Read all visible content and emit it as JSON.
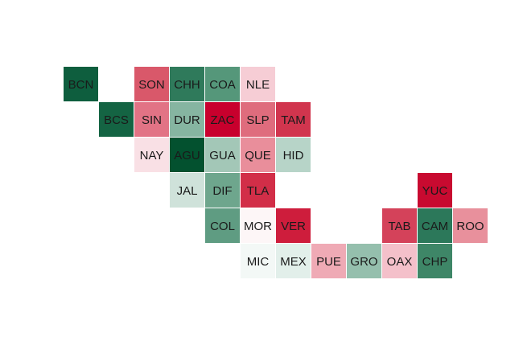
{
  "map": {
    "tiles": [
      {
        "code": "BCN",
        "row": 0,
        "col": 0,
        "color": "#0e5e3e"
      },
      {
        "code": "SON",
        "row": 0,
        "col": 2,
        "color": "#d9586a"
      },
      {
        "code": "CHH",
        "row": 0,
        "col": 3,
        "color": "#2f7a5b"
      },
      {
        "code": "COA",
        "row": 0,
        "col": 4,
        "color": "#55977a"
      },
      {
        "code": "NLE",
        "row": 0,
        "col": 5,
        "color": "#f6cdd5"
      },
      {
        "code": "BCS",
        "row": 1,
        "col": 1,
        "color": "#146443"
      },
      {
        "code": "SIN",
        "row": 1,
        "col": 2,
        "color": "#e27385"
      },
      {
        "code": "DUR",
        "row": 1,
        "col": 3,
        "color": "#86b5a1"
      },
      {
        "code": "ZAC",
        "row": 1,
        "col": 4,
        "color": "#c8002d"
      },
      {
        "code": "SLP",
        "row": 1,
        "col": 5,
        "color": "#df6c7d"
      },
      {
        "code": "TAM",
        "row": 1,
        "col": 6,
        "color": "#d1354e"
      },
      {
        "code": "NAY",
        "row": 2,
        "col": 2,
        "color": "#f9e0e5"
      },
      {
        "code": "AGU",
        "row": 2,
        "col": 3,
        "color": "#03512f"
      },
      {
        "code": "GUA",
        "row": 2,
        "col": 4,
        "color": "#a3c7b7"
      },
      {
        "code": "QUE",
        "row": 2,
        "col": 5,
        "color": "#e98e9b"
      },
      {
        "code": "HID",
        "row": 2,
        "col": 6,
        "color": "#b7d4c8"
      },
      {
        "code": "JAL",
        "row": 3,
        "col": 3,
        "color": "#cfe2da"
      },
      {
        "code": "DIF",
        "row": 3,
        "col": 4,
        "color": "#6ea68d"
      },
      {
        "code": "TLA",
        "row": 3,
        "col": 5,
        "color": "#d22e48"
      },
      {
        "code": "YUC",
        "row": 3,
        "col": 10,
        "color": "#c80a30"
      },
      {
        "code": "COL",
        "row": 4,
        "col": 4,
        "color": "#5f9c82"
      },
      {
        "code": "MOR",
        "row": 4,
        "col": 5,
        "color": "#fdf6f7"
      },
      {
        "code": "VER",
        "row": 4,
        "col": 6,
        "color": "#ce1d3c"
      },
      {
        "code": "TAB",
        "row": 4,
        "col": 9,
        "color": "#d4425a"
      },
      {
        "code": "CAM",
        "row": 4,
        "col": 10,
        "color": "#2c785a"
      },
      {
        "code": "ROO",
        "row": 4,
        "col": 11,
        "color": "#e8909c"
      },
      {
        "code": "MIC",
        "row": 5,
        "col": 5,
        "color": "#f3f8f6"
      },
      {
        "code": "MEX",
        "row": 5,
        "col": 6,
        "color": "#e2efea"
      },
      {
        "code": "PUE",
        "row": 5,
        "col": 7,
        "color": "#efaab5"
      },
      {
        "code": "GRO",
        "row": 5,
        "col": 8,
        "color": "#95bfad"
      },
      {
        "code": "OAX",
        "row": 5,
        "col": 9,
        "color": "#f4c0ca"
      },
      {
        "code": "CHP",
        "row": 5,
        "col": 10,
        "color": "#3e8667"
      }
    ]
  }
}
